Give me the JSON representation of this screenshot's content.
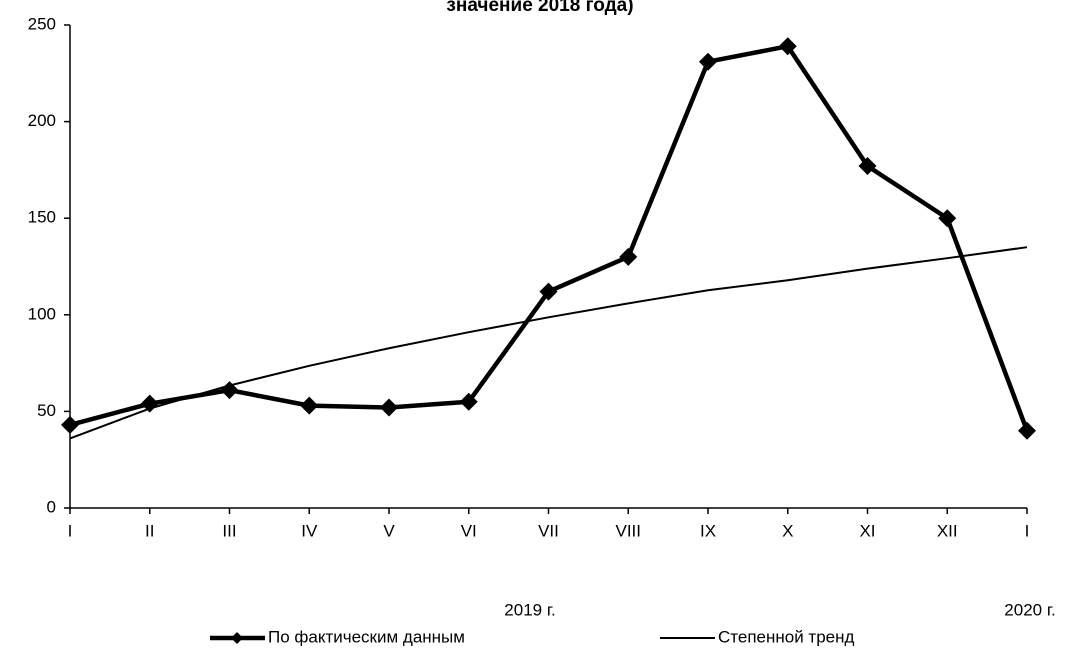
{
  "chart_data": {
    "type": "line",
    "title": "значение 2018 года)",
    "categories": [
      "I",
      "II",
      "III",
      "IV",
      "V",
      "VI",
      "VII",
      "VIII",
      "IX",
      "X",
      "XI",
      "XII",
      "I"
    ],
    "series": [
      {
        "name": "По фактическим данным",
        "color": "#000000",
        "values": [
          43,
          54,
          61,
          53,
          52,
          55,
          112,
          130,
          231,
          239,
          177,
          150,
          40
        ]
      },
      {
        "name": "Степенной тренд",
        "color": "#000000",
        "values": [
          36,
          51.5,
          63.4,
          73.6,
          82.7,
          91,
          98.7,
          105.9,
          112.7,
          117.9,
          123.9,
          129.3,
          135
        ]
      }
    ],
    "annotations": [
      "2019 г.",
      "2020 г."
    ],
    "ylim": [
      0,
      250
    ],
    "yticks": [
      0,
      50,
      100,
      150,
      200,
      250
    ]
  }
}
